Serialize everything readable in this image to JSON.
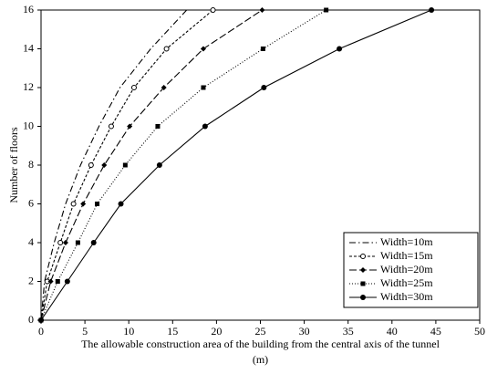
{
  "chart_data": {
    "type": "line",
    "ylabel": "Number of floors",
    "xlabel_lines": [
      "The allowable construction area of the building from the central axis of the tunnel",
      "(m)"
    ],
    "xlim": [
      0,
      50
    ],
    "xticks": [
      0,
      5,
      10,
      15,
      20,
      25,
      30,
      35,
      40,
      45,
      50
    ],
    "ylim": [
      0,
      16
    ],
    "yticks": [
      0,
      2,
      4,
      6,
      8,
      10,
      12,
      14,
      16
    ],
    "grid": false,
    "legend": "lower right",
    "series": [
      {
        "name": "Width=10m",
        "color": "#000000",
        "dash": "dash-dot",
        "marker": "none",
        "x": [
          0,
          0.4,
          1.5,
          2.8,
          4.5,
          6.6,
          9,
          12.5,
          16.6
        ],
        "values": [
          0,
          2,
          4,
          6,
          8,
          10,
          12,
          14,
          16
        ]
      },
      {
        "name": "Width=15m",
        "color": "#000000",
        "dash": "short-dash",
        "marker": "open-circle",
        "x": [
          0,
          0.7,
          2.2,
          3.7,
          5.7,
          8,
          10.6,
          14.3,
          19.6
        ],
        "values": [
          0,
          2,
          4,
          6,
          8,
          10,
          12,
          14,
          16
        ]
      },
      {
        "name": "Width=20m",
        "color": "#000000",
        "dash": "long-dash",
        "marker": "diamond",
        "x": [
          0,
          1.1,
          2.8,
          4.8,
          7.2,
          10.1,
          14,
          18.5,
          25.2
        ],
        "values": [
          0,
          2,
          4,
          6,
          8,
          10,
          12,
          14,
          16
        ]
      },
      {
        "name": "Width=25m",
        "color": "#000000",
        "dash": "dotted",
        "marker": "square",
        "x": [
          0,
          1.9,
          4.2,
          6.4,
          9.6,
          13.3,
          18.5,
          25.3,
          32.5
        ],
        "values": [
          0,
          2,
          4,
          6,
          8,
          10,
          12,
          14,
          16
        ]
      },
      {
        "name": "Width=30m",
        "color": "#000000",
        "dash": "solid",
        "marker": "circle",
        "x": [
          0,
          3,
          6,
          9.1,
          13.5,
          18.7,
          25.4,
          34,
          44.5
        ],
        "values": [
          0,
          2,
          4,
          6,
          8,
          10,
          12,
          14,
          16
        ]
      }
    ]
  }
}
